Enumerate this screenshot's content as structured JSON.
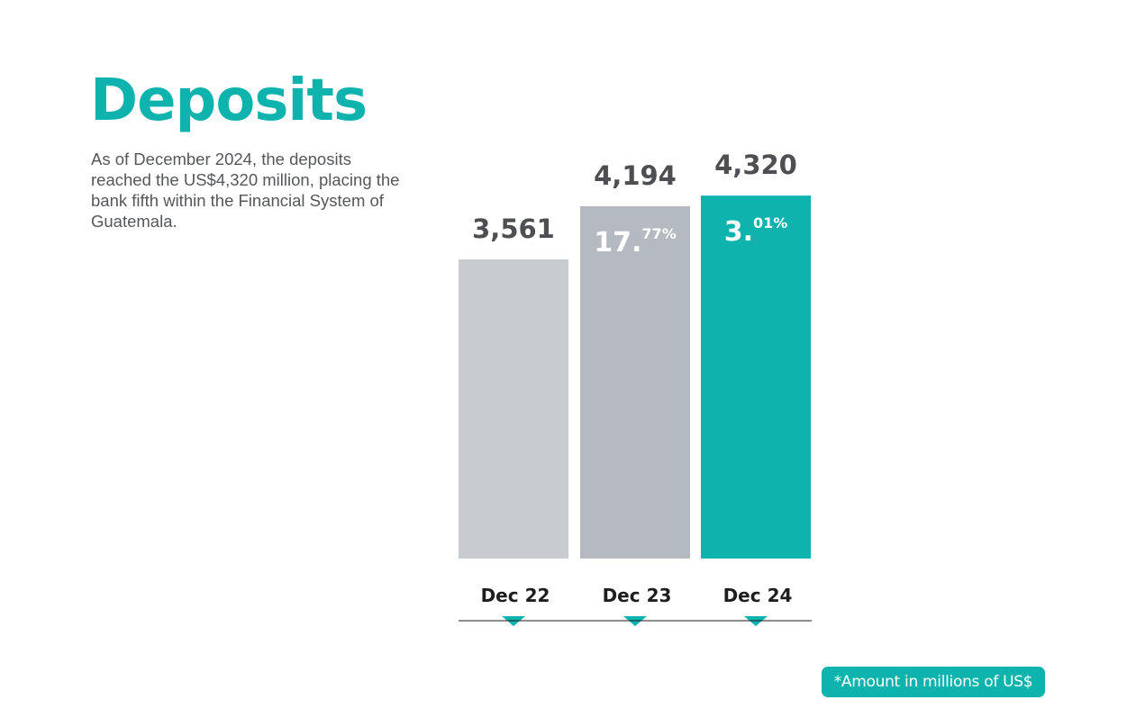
{
  "header": {
    "title": "Deposits",
    "description": "As of December 2024, the deposits reached the US$4,320 million, placing the bank fifth within the Financial System of Guatemala."
  },
  "footnote": "*Amount in millions of US$",
  "colors": {
    "accent": "#0fb3ad",
    "bar_dec22": "#c8cbcf",
    "bar_dec23": "#b4bac0",
    "bar_dec24": "#0fb3ad",
    "text_dark": "#4d4f52",
    "axis": "#1e1e1e"
  },
  "chart_data": {
    "type": "bar",
    "title": "",
    "xlabel": "",
    "ylabel": "",
    "categories": [
      "Dec 22",
      "Dec 23",
      "Dec 24"
    ],
    "values": [
      3561,
      4194,
      4320
    ],
    "value_labels": [
      "3,561",
      "4,194",
      "4,320"
    ],
    "growth_labels": [
      null,
      {
        "main": "17.",
        "sup": "77%"
      },
      {
        "main": "3.",
        "sup": "01%"
      }
    ],
    "bar_colors": [
      "#c8cbcf",
      "#b4bac0",
      "#0fb3ad"
    ],
    "ylim": [
      0,
      4450
    ],
    "grid": false,
    "legend": "none"
  }
}
